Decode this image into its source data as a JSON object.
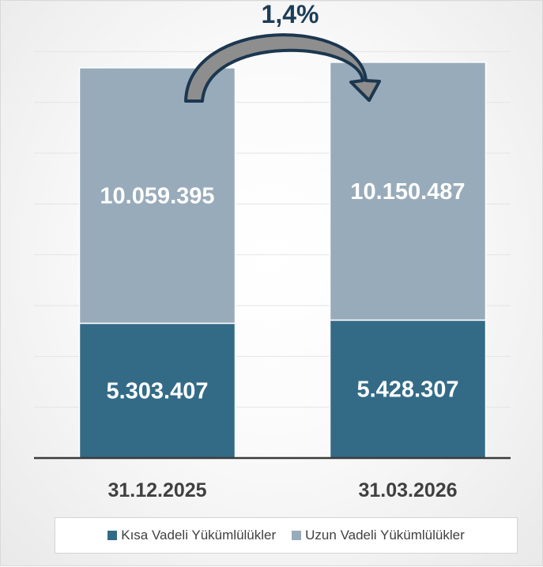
{
  "chart_data": {
    "type": "bar",
    "stacked": true,
    "categories": [
      "31.12.2025",
      "31.03.2026"
    ],
    "series": [
      {
        "name": "Kısa Vadeli Yükümlülükler",
        "values": [
          5303407,
          5428307
        ],
        "labels": [
          "5.303.407",
          "5.428.307"
        ],
        "color": "#336b87"
      },
      {
        "name": "Uzun Vadeli Yükümlülükler",
        "values": [
          10059395,
          10150487
        ],
        "labels": [
          "10.059.395",
          "10.150.487"
        ],
        "color": "#98abba"
      }
    ],
    "annotation": "1,4%",
    "ylim": [
      0,
      18000000
    ],
    "grid": true,
    "legend_position": "bottom"
  }
}
